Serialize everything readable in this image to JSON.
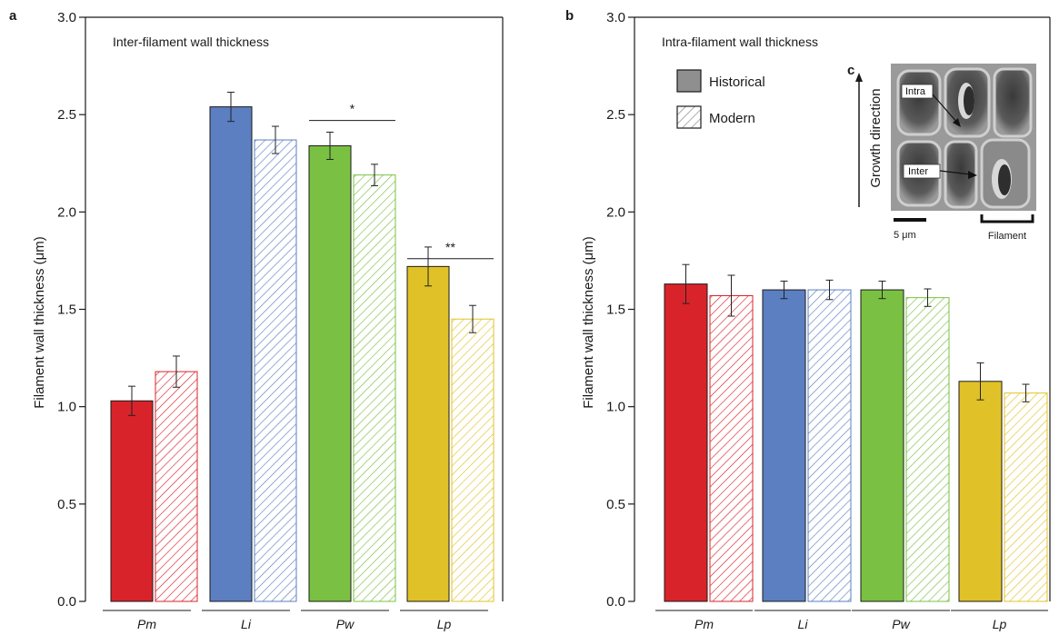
{
  "panel_letters": {
    "a": "a",
    "b": "b",
    "c": "c"
  },
  "legend": [
    {
      "label": "Historical",
      "style": "solid"
    },
    {
      "label": "Modern",
      "style": "hatched"
    }
  ],
  "inset": {
    "axis_label": "Growth direction",
    "intra_label": "Intra",
    "inter_label": "Inter",
    "scale_label": "5 μm",
    "filament_label": "Filament"
  },
  "colors": {
    "Pm": "#d9232a",
    "Li": "#5b7fc1",
    "Pw": "#7ac143",
    "Lp": "#e0c228",
    "axis": "#1a1a1a",
    "errorbar": "#222222"
  },
  "chart_data": [
    {
      "type": "bar",
      "panel": "a",
      "title": "Inter-filament wall thickness",
      "ylabel": "Filament wall thickness (μm)",
      "ylim": [
        0,
        3.0
      ],
      "yticks": [
        "0.0",
        "0.5",
        "1.0",
        "1.5",
        "2.0",
        "2.5",
        "3.0"
      ],
      "categories": [
        "Pm",
        "Li",
        "Pw",
        "Lp"
      ],
      "series": [
        {
          "name": "Historical",
          "values": [
            1.03,
            2.54,
            2.34,
            1.72
          ],
          "errors": [
            0.075,
            0.075,
            0.07,
            0.1
          ]
        },
        {
          "name": "Modern",
          "values": [
            1.18,
            2.37,
            2.19,
            1.45
          ],
          "errors": [
            0.08,
            0.07,
            0.055,
            0.07
          ]
        }
      ],
      "significance": [
        {
          "category": "Pw",
          "label": "*",
          "y": 2.47
        },
        {
          "category": "Lp",
          "label": "**",
          "y": 1.76
        }
      ]
    },
    {
      "type": "bar",
      "panel": "b",
      "title": "Intra-filament wall thickness",
      "ylabel": "Filament wall thickness (μm)",
      "ylim": [
        0,
        3.0
      ],
      "yticks": [
        "0.0",
        "0.5",
        "1.0",
        "1.5",
        "2.0",
        "2.5",
        "3.0"
      ],
      "categories": [
        "Pm",
        "Li",
        "Pw",
        "Lp"
      ],
      "series": [
        {
          "name": "Historical",
          "values": [
            1.63,
            1.6,
            1.6,
            1.13
          ],
          "errors": [
            0.1,
            0.045,
            0.045,
            0.095
          ]
        },
        {
          "name": "Modern",
          "values": [
            1.57,
            1.6,
            1.56,
            1.07
          ],
          "errors": [
            0.105,
            0.05,
            0.045,
            0.045
          ]
        }
      ],
      "significance": []
    }
  ]
}
